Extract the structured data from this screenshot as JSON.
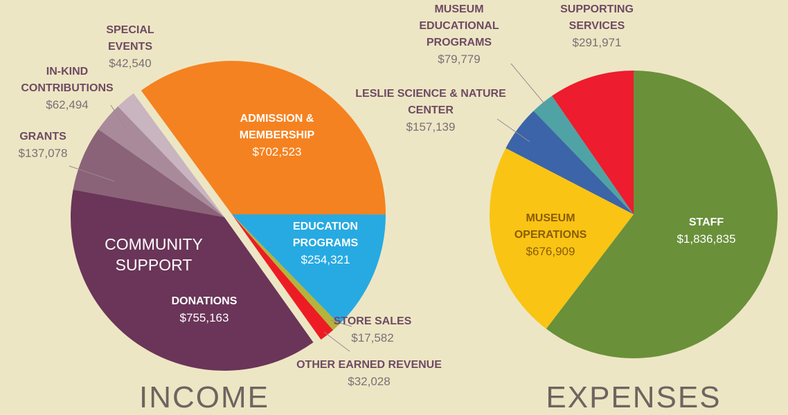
{
  "chart_data": [
    {
      "type": "pie",
      "title": "INCOME",
      "annotation": "COMMUNITY SUPPORT",
      "categories": [
        "ADMISSION &\nMEMBERSHIP",
        "EDUCATION\nPROGRAMS",
        "STORE SALES",
        "OTHER EARNED REVENUE",
        "DONATIONS",
        "GRANTS",
        "IN-KIND\nCONTRIBUTIONS",
        "SPECIAL\nEVENTS"
      ],
      "values": [
        702523,
        254321,
        17582,
        32028,
        755163,
        137078,
        62494,
        42540
      ],
      "value_labels": [
        "$702,523",
        "$254,321",
        "$17,582",
        "$32,028",
        "$755,163",
        "$137,078",
        "$62,494",
        "$42,540"
      ],
      "colors": [
        "#f58220",
        "#27aae1",
        "#b5b33a",
        "#ed1c24",
        "#6a3558",
        "#8a6378",
        "#a98a9b",
        "#c9b5c0"
      ]
    },
    {
      "type": "pie",
      "title": "EXPENSES",
      "categories": [
        "STAFF",
        "MUSEUM\nOPERATIONS",
        "LESLIE SCIENCE & NATURE\nCENTER",
        "MUSEUM\nEDUCATIONAL\nPROGRAMS",
        "SUPPORTING\nSERVICES"
      ],
      "values": [
        1836835,
        676909,
        157139,
        79779,
        291971
      ],
      "value_labels": [
        "$1,836,835",
        "$676,909",
        "$157,139",
        "$79,779",
        "$291,971"
      ],
      "colors": [
        "#6a903a",
        "#f9c414",
        "#3c64a8",
        "#4fa3a5",
        "#ed1c2e"
      ]
    }
  ]
}
